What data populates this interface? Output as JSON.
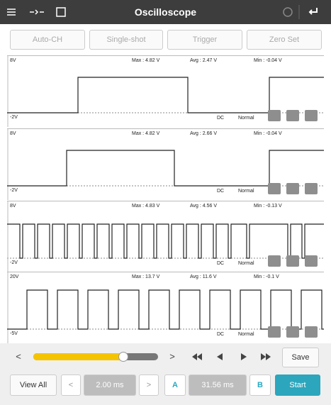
{
  "toolbar": {
    "title": "Oscilloscope"
  },
  "buttons": [
    "Auto-CH",
    "Single-shot",
    "Trigger",
    "Zero Set"
  ],
  "channels": [
    {
      "top": "8V",
      "max": "Max : 4.82 V",
      "avg": "Avg : 2.47 V",
      "min": "Min : -0.04 V",
      "bottom": "-2V",
      "coupling": "DC",
      "mode": "Normal"
    },
    {
      "top": "8V",
      "max": "Max : 4.82 V",
      "avg": "Avg : 2.66 V",
      "min": "Min : -0.04 V",
      "bottom": "-2V",
      "coupling": "DC",
      "mode": "Normal"
    },
    {
      "top": "8V",
      "max": "Max : 4.83 V",
      "avg": "Avg : 4.56 V",
      "min": "Min : -0.13 V",
      "bottom": "-2V",
      "coupling": "DC",
      "mode": "Normal"
    },
    {
      "top": "20V",
      "max": "Max : 13.7 V",
      "avg": "Avg : 11.6 V",
      "min": "Min : -0.1 V",
      "bottom": "-5V",
      "coupling": "DC",
      "mode": "Normal"
    }
  ],
  "controls": {
    "prev": "<",
    "next": ">",
    "save": "Save",
    "view_all": "View All",
    "time_prev": "<",
    "time_base": "2.00 ms",
    "time_next": ">",
    "cursor_a": "A",
    "cursor_delta": "31.56 ms",
    "cursor_b": "B",
    "start": "Start"
  }
}
